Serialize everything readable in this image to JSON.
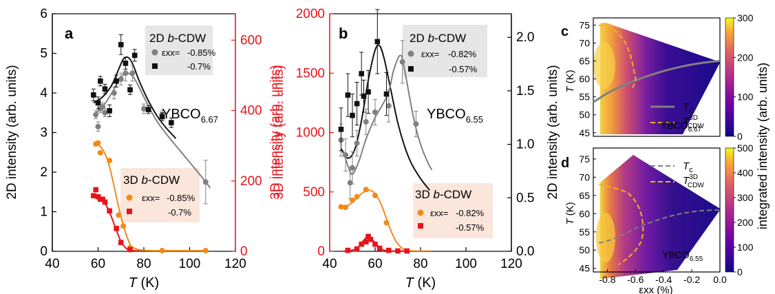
{
  "chart_data": [
    {
      "id": "a",
      "panel_label": "a",
      "type": "scatter",
      "xlabel": "T (K)",
      "xlabel_main": "T",
      "xlabel_unit": " (K)",
      "ylabel": "2D intensity (arb. units)",
      "ylabel_right": "3D intensity (arb. units)",
      "xlim": [
        40,
        120
      ],
      "ylim": [
        0,
        6
      ],
      "ylim_right": [
        0,
        675
      ],
      "xticks": [
        "40",
        "60",
        "80",
        "100",
        "120"
      ],
      "yticks": [
        "0",
        "1",
        "2",
        "3",
        "4",
        "5",
        "6"
      ],
      "yticks_right": [
        "0",
        "200",
        "400",
        "600"
      ],
      "sample": "YBCO6.67",
      "sample_base": "YBCO",
      "sample_sub": "6.67",
      "legend_2d": {
        "title_pre": "2D ",
        "title_b": "b",
        "title_post": "-CDW",
        "strain_label": "εxx=",
        "entries": [
          "-0.85%",
          "-0.7%"
        ]
      },
      "legend_3d": {
        "title_pre": "3D ",
        "title_b": "b",
        "title_post": "-CDW",
        "strain_label": "εxx=",
        "entries": [
          "-0.85%",
          "-0.7%"
        ]
      },
      "series": [
        {
          "name": "2D -0.85%",
          "axis": "left",
          "color": "#808080",
          "marker": "circle",
          "x": [
            59,
            60,
            61,
            62,
            63,
            67,
            70,
            72,
            75,
            80,
            88,
            107
          ],
          "y": [
            3.45,
            3.15,
            3.6,
            3.65,
            3.5,
            4.0,
            4.35,
            4.5,
            4.5,
            3.6,
            3.45,
            1.75
          ],
          "err": [
            0.1,
            0.12,
            0.1,
            0.1,
            0.1,
            0.15,
            0.15,
            0.2,
            0.2,
            0.12,
            0.1,
            0.55
          ]
        },
        {
          "name": "2D -0.7%",
          "axis": "left",
          "color": "#111111",
          "marker": "square",
          "x": [
            58,
            60,
            61,
            63,
            65,
            68,
            70,
            72,
            74,
            76,
            82,
            88,
            92
          ],
          "y": [
            3.95,
            3.75,
            4.3,
            4.1,
            3.55,
            4.3,
            5.22,
            4.75,
            4.08,
            4.95,
            3.58,
            3.4,
            3.25
          ],
          "err": [
            0.15,
            0.15,
            0.12,
            0.12,
            0.15,
            0.15,
            0.25,
            0.15,
            0.12,
            0.15,
            0.1,
            0.1,
            0.12
          ]
        },
        {
          "name": "3D -0.85%",
          "axis": "right",
          "color": "#f28a1a",
          "marker": "circle",
          "x": [
            59,
            60,
            61,
            65,
            69,
            71,
            74,
            88,
            107
          ],
          "y": [
            305,
            308,
            280,
            258,
            103,
            72,
            10,
            2,
            2
          ]
        },
        {
          "name": "3D -0.7%",
          "axis": "right",
          "color": "#e8141c",
          "marker": "square",
          "x": [
            58,
            59,
            60,
            61,
            62,
            63,
            65,
            68,
            70,
            74
          ],
          "y": [
            158,
            175,
            155,
            148,
            148,
            140,
            115,
            65,
            25,
            5
          ]
        }
      ],
      "fits": [
        {
          "axis": "left",
          "color": "#111111",
          "x": [
            58,
            62,
            66,
            69,
            71,
            73,
            75,
            78,
            82,
            86,
            90,
            94
          ],
          "y": [
            3.75,
            3.9,
            4.2,
            4.6,
            4.85,
            4.9,
            4.75,
            4.3,
            3.8,
            3.4,
            3.1,
            2.85
          ]
        },
        {
          "axis": "left",
          "color": "#808080",
          "x": [
            58,
            62,
            66,
            70,
            73,
            76,
            80,
            85,
            90,
            95,
            100,
            105,
            109
          ],
          "y": [
            3.45,
            3.65,
            4.0,
            4.4,
            4.5,
            4.35,
            3.9,
            3.35,
            2.95,
            2.6,
            2.25,
            1.9,
            1.6
          ]
        },
        {
          "axis": "right",
          "color": "#f28a1a",
          "x": [
            59,
            61,
            63,
            65,
            67,
            69,
            71,
            73,
            75,
            80,
            90,
            108
          ],
          "y": [
            305,
            298,
            278,
            240,
            185,
            125,
            75,
            35,
            12,
            3,
            2,
            2
          ]
        },
        {
          "axis": "right",
          "color": "#e8141c",
          "x": [
            58,
            60,
            62,
            64,
            66,
            68,
            70,
            72,
            74,
            78
          ],
          "y": [
            160,
            155,
            145,
            125,
            95,
            60,
            28,
            10,
            3,
            1
          ]
        }
      ]
    },
    {
      "id": "b",
      "panel_label": "b",
      "type": "scatter",
      "xlabel": "T (K)",
      "xlabel_main": "T",
      "xlabel_unit": " (K)",
      "ylabel": "3D intensity (arb. units)",
      "ylabel_right": "2D intensity (arb. units)",
      "xlim": [
        40,
        120
      ],
      "ylim": [
        0,
        2000
      ],
      "ylim_right": [
        0,
        2.22
      ],
      "xticks": [
        "40",
        "60",
        "80",
        "100",
        "120"
      ],
      "yticks": [
        "0",
        "500",
        "1000",
        "1500",
        "2000"
      ],
      "yticks_right": [
        "0.0",
        "0.5",
        "1.0",
        "1.5",
        "2.0"
      ],
      "sample": "YBCO6.55",
      "sample_base": "YBCO",
      "sample_sub": "6.55",
      "legend_2d": {
        "title_pre": "2D ",
        "title_b": "b",
        "title_post": "-CDW",
        "strain_label": "εxx=",
        "entries": [
          "-0.82%",
          "-0.57%"
        ]
      },
      "legend_3d": {
        "title_pre": "3D ",
        "title_b": "b",
        "title_post": "-CDW",
        "strain_label": "εxx=",
        "entries": [
          "-0.82%",
          "-0.57%"
        ]
      },
      "series": [
        {
          "name": "2D -0.82%",
          "axis": "right",
          "color": "#808080",
          "marker": "circle",
          "x": [
            45,
            47,
            49,
            50,
            52,
            56,
            60,
            66,
            72,
            78
          ],
          "y": [
            1.04,
            0.9,
            0.64,
            0.78,
            1.01,
            1.21,
            1.3,
            1.36,
            1.77,
            1.19
          ],
          "err": [
            0.15,
            0.15,
            0.15,
            0.15,
            0.12,
            0.12,
            0.12,
            0.15,
            0.2,
            0.12
          ]
        },
        {
          "name": "2D -0.57%",
          "axis": "right",
          "color": "#111111",
          "marker": "square",
          "x": [
            45,
            48,
            50,
            52,
            54,
            55,
            57,
            61,
            65
          ],
          "y": [
            1.14,
            1.46,
            1.27,
            1.38,
            1.66,
            1.45,
            1.49,
            1.96,
            1.47
          ],
          "err": [
            0.2,
            0.2,
            0.2,
            0.2,
            0.2,
            0.15,
            0.2,
            0.3,
            0.2
          ]
        },
        {
          "name": "3D -0.82%",
          "axis": "left",
          "color": "#f28a1a",
          "marker": "circle",
          "x": [
            45,
            47,
            50,
            52,
            56,
            60,
            65
          ],
          "y": [
            375,
            370,
            430,
            460,
            520,
            470,
            240
          ]
        },
        {
          "name": "3D -0.57%",
          "axis": "left",
          "color": "#e8141c",
          "marker": "square",
          "x": [
            48,
            52,
            54,
            56,
            57,
            58,
            60,
            62,
            66,
            70,
            74
          ],
          "y": [
            8,
            20,
            60,
            80,
            125,
            100,
            60,
            25,
            8,
            3,
            3
          ]
        }
      ],
      "fits": [
        {
          "axis": "right",
          "color": "#111111",
          "x": [
            45,
            48,
            51,
            54,
            57,
            60,
            62,
            64,
            67,
            70,
            73,
            76,
            80,
            84
          ],
          "y": [
            0.96,
            0.87,
            0.95,
            1.22,
            1.6,
            1.88,
            1.92,
            1.8,
            1.5,
            1.2,
            0.98,
            0.82,
            0.68,
            0.57
          ]
        },
        {
          "axis": "right",
          "color": "#808080",
          "x": [
            46,
            48,
            50,
            53,
            56,
            60,
            63,
            66,
            68,
            70,
            71,
            72,
            74,
            77,
            80,
            83,
            85
          ],
          "y": [
            0.94,
            0.8,
            0.72,
            0.85,
            1.05,
            1.25,
            1.36,
            1.49,
            1.68,
            1.8,
            1.83,
            1.8,
            1.58,
            1.24,
            1.0,
            0.84,
            0.76
          ]
        },
        {
          "axis": "left",
          "color": "#f28a1a",
          "x": [
            45,
            48,
            51,
            54,
            57,
            60,
            63,
            66,
            69,
            72,
            75,
            78,
            85
          ],
          "y": [
            375,
            385,
            430,
            485,
            515,
            485,
            380,
            220,
            90,
            25,
            6,
            2,
            2
          ]
        },
        {
          "axis": "left",
          "color": "#e8141c",
          "x": [
            46,
            49,
            52,
            54,
            56,
            57,
            58,
            60,
            62,
            64,
            66,
            68,
            70,
            74
          ],
          "y": [
            2,
            6,
            25,
            70,
            115,
            125,
            115,
            70,
            30,
            10,
            3,
            2,
            2,
            2
          ]
        }
      ]
    },
    {
      "id": "c",
      "panel_label": "c",
      "type": "heatmap",
      "ylabel": "T (K)",
      "ylabel_main": "T",
      "ylabel_unit": " (K)",
      "xlim": [
        -0.9,
        0.0
      ],
      "ylim": [
        44,
        77
      ],
      "yticks": [
        "45",
        "50",
        "55",
        "60",
        "65",
        "70",
        "75"
      ],
      "colorbar": {
        "min": 0,
        "max": 300,
        "ticks": [
          "0",
          "100",
          "200",
          "300"
        ]
      },
      "sample": "YBCO6.67",
      "sample_base": "YBCO",
      "sample_sub": "6.67",
      "legend": {
        "tc_main": "T",
        "tc_sub": "c",
        "tcdw_main": "T",
        "tcdw_sup": "3D",
        "tcdw_sub": "CDW"
      },
      "lines": {
        "tc": {
          "color": "#808080",
          "style": "solid",
          "x": [
            -0.9,
            -0.8,
            -0.7,
            -0.6,
            -0.5,
            -0.4,
            -0.3,
            -0.2,
            -0.1,
            0.0
          ],
          "y": [
            53.5,
            56.0,
            58.0,
            59.6,
            61.0,
            62.2,
            63.2,
            64.0,
            64.6,
            65.0
          ]
        },
        "tcdw": {
          "color": "#f2b31a",
          "style": "dashed",
          "x": [
            -0.86,
            -0.75,
            -0.68,
            -0.64,
            -0.62,
            -0.61,
            -0.6,
            -0.62
          ],
          "y": [
            75,
            73.5,
            70.5,
            67,
            64,
            62,
            60,
            57.5
          ]
        }
      }
    },
    {
      "id": "d",
      "panel_label": "d",
      "type": "heatmap",
      "ylabel": "T (K)",
      "ylabel_main": "T",
      "ylabel_unit": " (K)",
      "xlabel": "εxx (%)",
      "xlim": [
        -0.9,
        0.0
      ],
      "ylim": [
        44,
        78
      ],
      "xticks": [
        "-0.8",
        "-0.6",
        "-0.4",
        "-0.2",
        "0.0"
      ],
      "yticks": [
        "45",
        "50",
        "55",
        "60",
        "65",
        "70",
        "75"
      ],
      "colorbar": {
        "min": 0,
        "max": 500,
        "ticks": [
          "0",
          "100",
          "200",
          "300",
          "400",
          "500"
        ]
      },
      "colorbar_label": "integrated intensity (arb. units)",
      "sample": "YBCO6.55",
      "sample_base": "YBCO",
      "sample_sub": "6.55",
      "legend": {
        "tc_main": "T",
        "tc_sub": "c",
        "tcdw_main": "T",
        "tcdw_sup": "3D",
        "tcdw_sub": "CDW"
      },
      "lines": {
        "tc": {
          "color": "#808080",
          "style": "dashed",
          "x": [
            -0.86,
            -0.8,
            -0.7,
            -0.6,
            -0.5,
            -0.4,
            -0.3,
            -0.2,
            -0.1,
            0.0
          ],
          "y": [
            52,
            52.5,
            54,
            56,
            57.5,
            58.8,
            59.8,
            60.5,
            60.9,
            61
          ]
        },
        "tcdw": {
          "color": "#f2b31a",
          "style": "dashed",
          "x": [
            -0.86,
            -0.75,
            -0.65,
            -0.58,
            -0.55,
            -0.55,
            -0.58,
            -0.65,
            -0.72
          ],
          "y": [
            68,
            67,
            65.5,
            62,
            58,
            54,
            51,
            48,
            46
          ]
        }
      }
    }
  ]
}
